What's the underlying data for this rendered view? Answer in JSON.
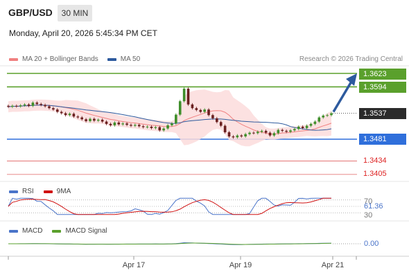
{
  "header": {
    "pair": "GBP/USD",
    "timeframe": "30 MIN",
    "datetime": "Monday, April 20, 2026 5:45:34 PM CET"
  },
  "legend": {
    "items": [
      {
        "label": "MA 20 + Bollinger Bands",
        "color": "#f08080"
      },
      {
        "label": "MA 50",
        "color": "#2d5a9e"
      }
    ],
    "credit": "Research © 2026 Trading Central"
  },
  "colors": {
    "up": "#5aa02c",
    "down": "#6a1f1f",
    "candle_up_body": "#3e8e2a",
    "resistance": "#5aa02c",
    "pivot": "#2f6fdb",
    "support": "#e06060",
    "current_badge": "#2b2b2b",
    "arrow": "#2d5a9e",
    "band_fill": "#fcdcdc"
  },
  "chart_data": [
    {
      "type": "candlestick",
      "title": "GBP/USD 30 MIN",
      "x_ticks": [
        "Apr 17",
        "Apr 19",
        "Apr 21"
      ],
      "ylim": [
        1.338,
        1.364
      ],
      "price_series_close": [
        1.3551,
        1.3553,
        1.3552,
        1.3554,
        1.3556,
        1.3553,
        1.356,
        1.3557,
        1.3555,
        1.3552,
        1.3548,
        1.3545,
        1.354,
        1.3537,
        1.3533,
        1.3536,
        1.353,
        1.3528,
        1.3524,
        1.352,
        1.3525,
        1.3521,
        1.3523,
        1.3519,
        1.3514,
        1.3511,
        1.3517,
        1.3513,
        1.3515,
        1.3512,
        1.351,
        1.3512,
        1.3509,
        1.3507,
        1.3508,
        1.3505,
        1.3507,
        1.35,
        1.3504,
        1.3511,
        1.3515,
        1.3534,
        1.3563,
        1.359,
        1.3556,
        1.3548,
        1.3544,
        1.354,
        1.3545,
        1.3533,
        1.3526,
        1.3518,
        1.351,
        1.3496,
        1.3487,
        1.3485,
        1.3489,
        1.3487,
        1.3492,
        1.3495,
        1.3494,
        1.3497,
        1.3499,
        1.3495,
        1.3489,
        1.3494,
        1.3501,
        1.3499,
        1.3497,
        1.35,
        1.3503,
        1.3508,
        1.3505,
        1.351,
        1.3514,
        1.3519,
        1.3528,
        1.3532,
        1.3533,
        1.3537
      ],
      "levels": [
        {
          "value": 1.3623,
          "label": "1.3623",
          "kind": "resistance"
        },
        {
          "value": 1.3594,
          "label": "1.3594",
          "kind": "resistance"
        },
        {
          "value": 1.3537,
          "label": "1.3537",
          "kind": "current"
        },
        {
          "value": 1.3481,
          "label": "1.3481",
          "kind": "pivot"
        },
        {
          "value": 1.3434,
          "label": "1.3434",
          "kind": "support"
        },
        {
          "value": 1.3405,
          "label": "1.3405",
          "kind": "support"
        }
      ]
    },
    {
      "type": "line",
      "title": "RSI",
      "series": [
        {
          "name": "RSI",
          "color": "#4a74c9"
        },
        {
          "name": "9MA",
          "color": "#d01010"
        }
      ],
      "ylim": [
        20,
        80
      ],
      "reference_lines": [
        70,
        50,
        30
      ],
      "last_value": "61.36"
    },
    {
      "type": "line",
      "title": "MACD",
      "series": [
        {
          "name": "MACD",
          "color": "#4a74c9"
        },
        {
          "name": "MACD Signal",
          "color": "#5aa02c"
        }
      ],
      "last_value": "0.00"
    }
  ],
  "panels": {
    "rsi": {
      "label": "RSI",
      "ma_label": "9MA",
      "value": "61.36",
      "ref_high": "70",
      "ref_low": "30"
    },
    "macd": {
      "label": "MACD",
      "signal_label": "MACD Signal",
      "value": "0.00"
    }
  }
}
